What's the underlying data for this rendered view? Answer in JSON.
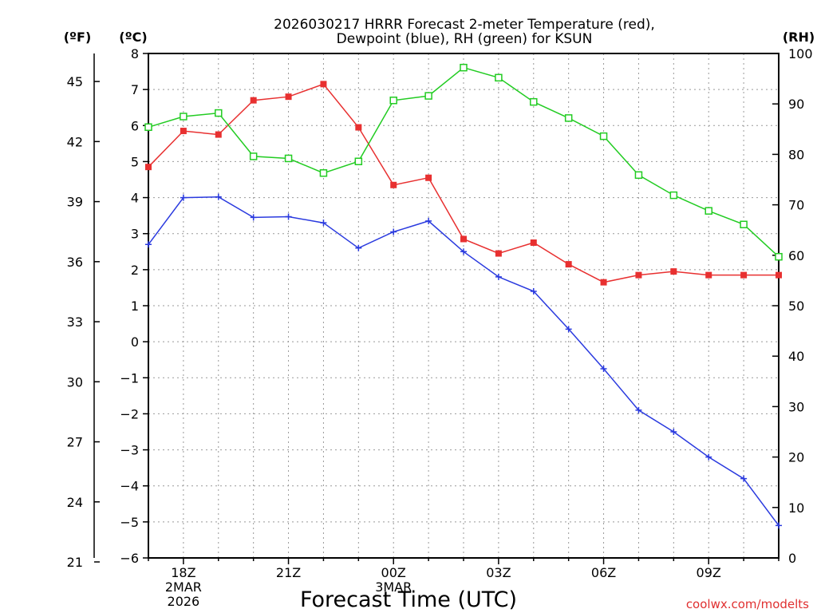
{
  "chart_data": {
    "type": "line",
    "title_line1": "2026030217 HRRR Forecast 2-meter Temperature (red),",
    "title_line2": "Dewpoint (blue), RH (green) for KSUN",
    "xlabel": "Forecast Time (UTC)",
    "watermark": "coolwx.com/modelts",
    "unit_f": "(ºF)",
    "unit_c": "(ºC)",
    "unit_rh": "(RH)",
    "x_hours": [
      17,
      18,
      19,
      20,
      21,
      22,
      23,
      24,
      25,
      26,
      27,
      28,
      29,
      30,
      31,
      32,
      33,
      34,
      35
    ],
    "x_tick_hours": [
      18,
      21,
      24,
      27,
      30,
      33
    ],
    "x_tick_labels": [
      "18Z",
      "21Z",
      "00Z",
      "03Z",
      "06Z",
      "09Z"
    ],
    "x_date_labels": [
      {
        "hour": 18,
        "line1": "2MAR",
        "line2": "2026"
      },
      {
        "hour": 24,
        "line1": "3MAR",
        "line2": ""
      }
    ],
    "xlim": [
      17,
      35
    ],
    "ylim_c": [
      -6,
      8
    ],
    "ylim_rh": [
      0,
      100
    ],
    "y_ticks_c": [
      "8",
      "7",
      "6",
      "5",
      "4",
      "3",
      "2",
      "1",
      "0",
      "−1",
      "−2",
      "−3",
      "−4",
      "−5",
      "−6"
    ],
    "y_ticks_f": [
      "45",
      "42",
      "39",
      "36",
      "33",
      "30",
      "27",
      "24",
      "21"
    ],
    "y_ticks_rh": [
      "100",
      "90",
      "80",
      "70",
      "60",
      "50",
      "40",
      "30",
      "20",
      "10",
      "0"
    ],
    "series": [
      {
        "name": "Temperature",
        "axis": "c",
        "color": "#e83030",
        "marker": "filled-square",
        "values": [
          4.85,
          5.85,
          5.75,
          6.7,
          6.8,
          7.15,
          5.95,
          4.35,
          4.55,
          2.85,
          2.45,
          2.75,
          2.15,
          1.65,
          1.85,
          1.95,
          1.85,
          1.85,
          1.85
        ]
      },
      {
        "name": "Dewpoint",
        "axis": "c",
        "color": "#2a3adf",
        "marker": "plus",
        "values": [
          2.7,
          4.0,
          4.02,
          3.45,
          3.47,
          3.3,
          2.6,
          3.05,
          3.35,
          2.5,
          1.8,
          1.4,
          0.35,
          -0.75,
          -1.9,
          -2.5,
          -3.2,
          -3.8,
          -5.1
        ]
      },
      {
        "name": "RH",
        "axis": "rh",
        "color": "#22cc22",
        "marker": "open-square",
        "values": [
          85.4,
          87.5,
          88.2,
          79.6,
          79.2,
          76.3,
          78.6,
          90.7,
          91.6,
          97.2,
          95.2,
          90.4,
          87.2,
          83.6,
          75.9,
          71.9,
          68.8,
          66.1,
          59.7
        ]
      }
    ]
  }
}
